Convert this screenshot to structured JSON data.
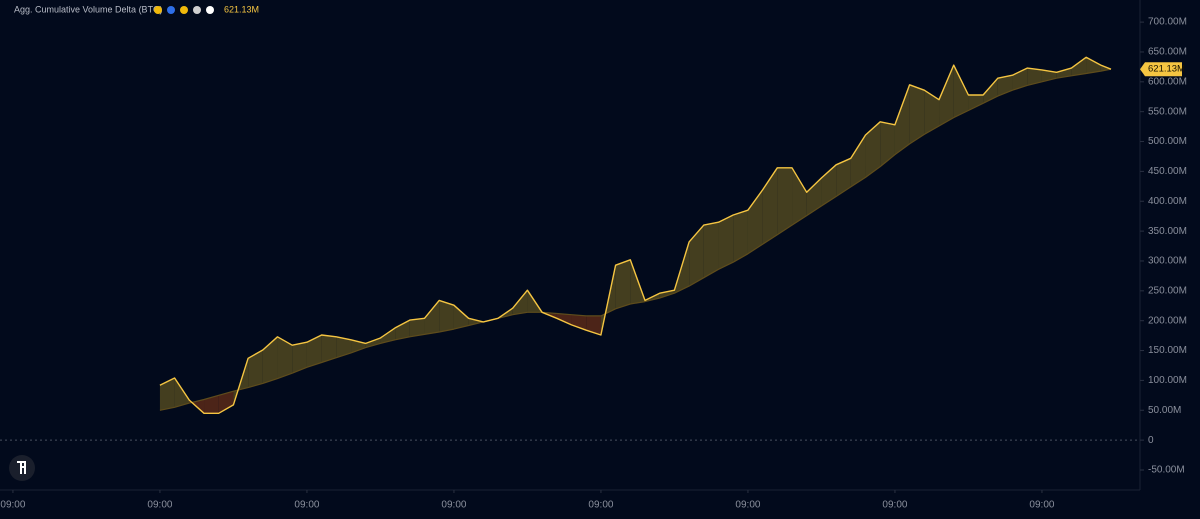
{
  "chart_data": {
    "type": "line",
    "title": "Agg. Cumulative Volume Delta (BTC)",
    "current_label": "621.13M",
    "x": [
      1.0,
      1.1,
      1.2,
      1.3,
      1.4,
      1.5,
      1.6,
      1.7,
      1.8,
      1.9,
      2.0,
      2.1,
      2.2,
      2.3,
      2.4,
      2.5,
      2.6,
      2.7,
      2.8,
      2.9,
      3.0,
      3.1,
      3.2,
      3.3,
      3.4,
      3.5,
      3.6,
      3.7,
      3.8,
      3.9,
      4.0,
      4.1,
      4.2,
      4.3,
      4.4,
      4.5,
      4.6,
      4.7,
      4.8,
      4.9,
      5.0,
      5.1,
      5.2,
      5.3,
      5.4,
      5.5,
      5.6,
      5.7,
      5.8,
      5.9,
      6.0,
      6.1,
      6.2,
      6.3,
      6.4,
      6.5,
      6.6,
      6.7,
      6.8,
      6.9,
      7.0,
      7.1,
      7.2,
      7.3,
      7.4,
      7.47
    ],
    "series": [
      {
        "color": "#f5c542",
        "values": [
          92,
          104,
          67,
          45,
          45,
          59,
          137,
          151,
          173,
          159,
          164,
          176,
          173,
          168,
          162,
          171,
          188,
          201,
          204,
          234,
          226,
          204,
          198,
          204,
          221,
          251,
          214,
          204,
          193,
          184,
          176,
          293,
          302,
          234,
          246,
          251,
          332,
          360,
          365,
          377,
          385,
          419,
          456,
          456,
          415,
          439,
          461,
          472,
          511,
          533,
          528,
          595,
          586,
          570,
          628,
          578,
          578,
          606,
          611,
          623,
          620,
          616,
          623,
          641,
          628,
          621.13
        ]
      },
      {
        "color": "#5e4c1c",
        "values": [
          50,
          55,
          62,
          68,
          75,
          82,
          88,
          95,
          103,
          112,
          122,
          130,
          138,
          146,
          155,
          162,
          168,
          173,
          177,
          181,
          186,
          192,
          198,
          204,
          210,
          214,
          214,
          212,
          210,
          208,
          208,
          220,
          228,
          232,
          238,
          246,
          258,
          272,
          286,
          298,
          312,
          328,
          344,
          360,
          376,
          392,
          408,
          424,
          440,
          458,
          478,
          496,
          512,
          526,
          540,
          552,
          564,
          576,
          586,
          594,
          600,
          606,
          610,
          614,
          618,
          621.13
        ]
      }
    ],
    "fill_above": "#7a6a22",
    "fill_below": "#8a3a16",
    "xlim": [
      -0.088,
      7.667
    ],
    "xticks": [
      {
        "value": 0,
        "label": "09:00"
      },
      {
        "value": 1,
        "label": "09:00"
      },
      {
        "value": 2,
        "label": "09:00"
      },
      {
        "value": 3,
        "label": "09:00"
      },
      {
        "value": 4,
        "label": "09:00"
      },
      {
        "value": 5,
        "label": "09:00"
      },
      {
        "value": 6,
        "label": "09:00"
      },
      {
        "value": 7,
        "label": "09:00"
      }
    ],
    "ylim": [
      -83.5,
      737
    ],
    "yticks": [
      {
        "value": -50,
        "label": "-50.00M"
      },
      0,
      {
        "value": 50,
        "label": "50.00M"
      },
      {
        "value": 100,
        "label": "100.00M"
      },
      {
        "value": 150,
        "label": "150.00M"
      },
      {
        "value": 200,
        "label": "200.00M"
      },
      {
        "value": 250,
        "label": "250.00M"
      },
      {
        "value": 300,
        "label": "300.00M"
      },
      {
        "value": 350,
        "label": "350.00M"
      },
      {
        "value": 400,
        "label": "400.00M"
      },
      {
        "value": 450,
        "label": "450.00M"
      },
      {
        "value": 500,
        "label": "500.00M"
      },
      {
        "value": 550,
        "label": "550.00M"
      },
      {
        "value": 600,
        "label": "600.00M"
      },
      {
        "value": 650,
        "label": "650.00M"
      },
      {
        "value": 700,
        "label": "700.00M"
      }
    ]
  }
}
